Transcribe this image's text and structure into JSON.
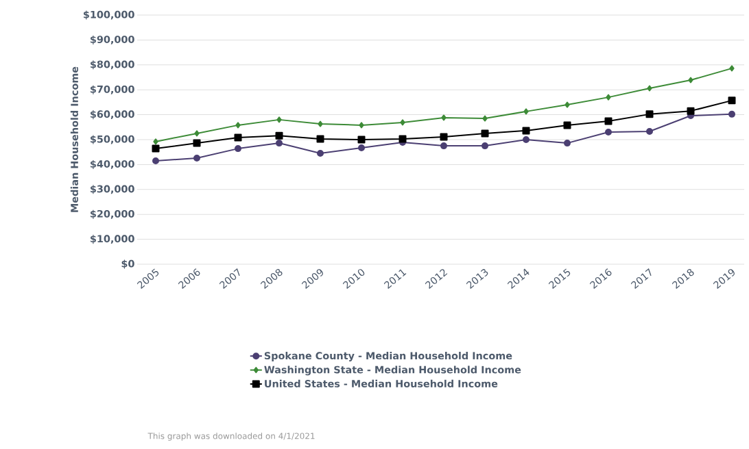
{
  "chart_data": {
    "type": "line",
    "ylabel": "Median Household Income",
    "categories": [
      "2005",
      "2006",
      "2007",
      "2008",
      "2009",
      "2010",
      "2011",
      "2012",
      "2013",
      "2014",
      "2015",
      "2016",
      "2017",
      "2018",
      "2019"
    ],
    "series": [
      {
        "name": "Spokane County - Median Household Income",
        "color": "#4b3f72",
        "marker": "circle",
        "values": [
          41500,
          42600,
          46400,
          48600,
          44500,
          46700,
          48900,
          47500,
          47500,
          50000,
          48600,
          53000,
          53300,
          59600,
          60200
        ]
      },
      {
        "name": "Washington State - Median Household Income",
        "color": "#3d8b37",
        "marker": "diamond",
        "values": [
          49200,
          52500,
          55800,
          58000,
          56300,
          55800,
          56900,
          58800,
          58500,
          61300,
          64000,
          67000,
          70600,
          73900,
          78600
        ]
      },
      {
        "name": "United States - Median Household Income",
        "color": "#000000",
        "marker": "square",
        "values": [
          46400,
          48600,
          50800,
          51600,
          50300,
          50000,
          50300,
          51100,
          52500,
          53600,
          55800,
          57400,
          60200,
          61500,
          65700
        ]
      }
    ],
    "ylim": [
      0,
      100000
    ],
    "yticks": [
      {
        "value": 0,
        "label": "$0"
      },
      {
        "value": 10000,
        "label": "$10,000"
      },
      {
        "value": 20000,
        "label": "$20,000"
      },
      {
        "value": 30000,
        "label": "$30,000"
      },
      {
        "value": 40000,
        "label": "$40,000"
      },
      {
        "value": 50000,
        "label": "$50,000"
      },
      {
        "value": 60000,
        "label": "$60,000"
      },
      {
        "value": 70000,
        "label": "$70,000"
      },
      {
        "value": 80000,
        "label": "$80,000"
      },
      {
        "value": 90000,
        "label": "$90,000"
      },
      {
        "value": 100000,
        "label": "$100,000"
      }
    ],
    "grid": "y",
    "legend": "bottom",
    "line_style": "solid",
    "annotations": [
      "This graph was downloaded on 4/1/2021"
    ]
  }
}
